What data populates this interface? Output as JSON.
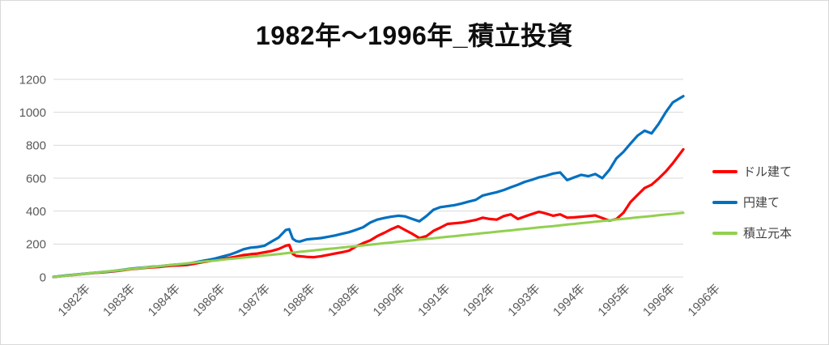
{
  "title": "1982年～1996年_積立投資",
  "axis": {
    "y_tick_color": "#595959",
    "x_tick_color": "#595959",
    "gridline_color": "#d9d9d9"
  },
  "legend": {
    "entries": [
      {
        "id": "dollar",
        "label": "ドル建て",
        "color": "#ff0000"
      },
      {
        "id": "yen",
        "label": "円建て",
        "color": "#0070c0"
      },
      {
        "id": "principal",
        "label": "積立元本",
        "color": "#92d050"
      }
    ]
  },
  "chart_data": {
    "type": "line",
    "title": "1982年～1996年_積立投資",
    "x_unit": "months since Jan 1982",
    "x_range": [
      0,
      179
    ],
    "ylim": [
      0,
      1200
    ],
    "yticks": [
      0,
      200,
      400,
      600,
      800,
      1000,
      1200
    ],
    "xtick_labels": [
      "1982年",
      "1983年",
      "1984年",
      "1986年",
      "1987年",
      "1988年",
      "1989年",
      "1990年",
      "1991年",
      "1992年",
      "1993年",
      "1994年",
      "1995年",
      "1996年",
      "1996年"
    ],
    "grid": "horizontal",
    "legend_position": "right",
    "x": [
      0,
      2,
      4,
      6,
      8,
      10,
      12,
      14,
      16,
      18,
      20,
      22,
      24,
      26,
      28,
      30,
      32,
      34,
      36,
      38,
      40,
      42,
      44,
      46,
      48,
      50,
      52,
      54,
      56,
      58,
      60,
      62,
      64,
      66,
      67,
      68,
      69,
      70,
      72,
      74,
      76,
      78,
      80,
      82,
      84,
      86,
      88,
      90,
      92,
      94,
      96,
      98,
      100,
      102,
      104,
      106,
      108,
      110,
      112,
      114,
      116,
      118,
      120,
      122,
      124,
      126,
      128,
      130,
      132,
      134,
      136,
      138,
      140,
      142,
      144,
      146,
      148,
      150,
      152,
      154,
      156,
      158,
      160,
      162,
      164,
      166,
      168,
      170,
      172,
      174,
      176,
      179
    ],
    "series": [
      {
        "id": "dollar",
        "name": "ドル建て",
        "color": "#ff0000",
        "values": [
          0,
          4,
          9,
          13,
          17,
          21,
          25,
          28,
          32,
          36,
          42,
          47,
          51,
          55,
          58,
          61,
          66,
          69,
          71,
          73,
          80,
          88,
          95,
          103,
          110,
          116,
          124,
          133,
          138,
          142,
          150,
          158,
          170,
          190,
          195,
          140,
          128,
          126,
          122,
          120,
          126,
          134,
          142,
          150,
          160,
          185,
          205,
          222,
          248,
          268,
          290,
          308,
          285,
          262,
          236,
          248,
          280,
          300,
          322,
          326,
          330,
          338,
          346,
          360,
          352,
          348,
          370,
          380,
          352,
          368,
          382,
          396,
          385,
          372,
          380,
          360,
          362,
          366,
          370,
          374,
          358,
          342,
          352,
          390,
          455,
          498,
          540,
          560,
          598,
          640,
          690,
          775
        ]
      },
      {
        "id": "yen",
        "name": "円建て",
        "color": "#0070c0",
        "values": [
          0,
          5,
          10,
          14,
          18,
          22,
          26,
          30,
          34,
          39,
          45,
          50,
          54,
          58,
          62,
          65,
          70,
          74,
          77,
          80,
          88,
          96,
          104,
          112,
          124,
          135,
          150,
          168,
          178,
          182,
          190,
          215,
          240,
          285,
          290,
          232,
          218,
          215,
          228,
          232,
          236,
          244,
          252,
          262,
          272,
          286,
          302,
          330,
          348,
          358,
          366,
          372,
          368,
          352,
          338,
          370,
          408,
          424,
          430,
          436,
          446,
          458,
          468,
          495,
          505,
          515,
          528,
          545,
          560,
          578,
          590,
          605,
          615,
          628,
          635,
          588,
          605,
          620,
          612,
          625,
          600,
          650,
          720,
          760,
          810,
          858,
          888,
          872,
          930,
          1000,
          1060,
          1098
        ]
      },
      {
        "id": "principal",
        "name": "積立元本",
        "color": "#92d050",
        "values": [
          0,
          4,
          9,
          13,
          17,
          22,
          26,
          31,
          35,
          39,
          44,
          48,
          52,
          57,
          61,
          65,
          70,
          74,
          78,
          83,
          87,
          92,
          96,
          100,
          105,
          109,
          113,
          118,
          122,
          126,
          131,
          135,
          139,
          144,
          146,
          148,
          150,
          153,
          157,
          161,
          166,
          170,
          174,
          179,
          183,
          187,
          192,
          196,
          200,
          205,
          209,
          214,
          218,
          222,
          227,
          231,
          235,
          240,
          244,
          248,
          253,
          257,
          261,
          266,
          270,
          275,
          279,
          283,
          288,
          292,
          296,
          301,
          305,
          309,
          314,
          318,
          322,
          327,
          331,
          336,
          340,
          344,
          349,
          353,
          357,
          362,
          366,
          370,
          375,
          379,
          383,
          390
        ]
      }
    ]
  }
}
